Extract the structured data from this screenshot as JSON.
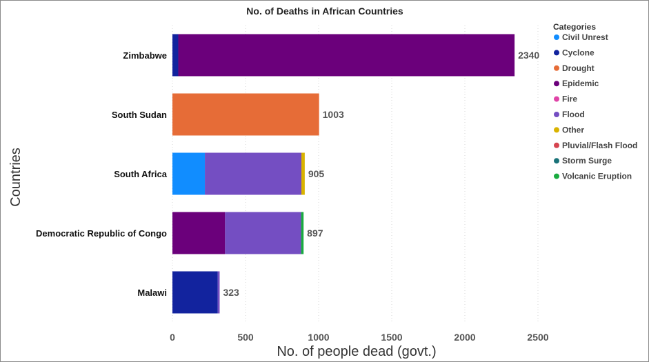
{
  "chart_data": {
    "type": "bar",
    "orientation": "horizontal",
    "stacked": true,
    "title": "No. of Deaths in African Countries",
    "xlabel": "No. of people dead (govt.)",
    "ylabel": "Countries",
    "xlim": [
      0,
      2600
    ],
    "xticks": [
      0,
      500,
      1000,
      1500,
      2000,
      2500
    ],
    "grid": "vertical-dotted",
    "legend_position": "right",
    "legend_title": "Categories",
    "categories": [
      "Zimbabwe",
      "South Sudan",
      "South Africa",
      "Democratic Republic of Congo",
      "Malawi"
    ],
    "totals": [
      2340,
      1003,
      905,
      897,
      323
    ],
    "series": [
      {
        "name": "Civil Unrest",
        "color": "#118DFF",
        "values": [
          0,
          0,
          222,
          0,
          0
        ]
      },
      {
        "name": "Cyclone",
        "color": "#12239E",
        "values": [
          40,
          0,
          0,
          0,
          310
        ]
      },
      {
        "name": "Drought",
        "color": "#E66C37",
        "values": [
          0,
          1003,
          0,
          0,
          0
        ]
      },
      {
        "name": "Epidemic",
        "color": "#6B007B",
        "values": [
          2300,
          0,
          0,
          360,
          0
        ]
      },
      {
        "name": "Fire",
        "color": "#E044A7",
        "values": [
          0,
          0,
          0,
          0,
          0
        ]
      },
      {
        "name": "Flood",
        "color": "#744EC2",
        "values": [
          0,
          0,
          660,
          520,
          13
        ]
      },
      {
        "name": "Other",
        "color": "#D9B300",
        "values": [
          0,
          0,
          23,
          0,
          0
        ]
      },
      {
        "name": "Pluvial/Flash Flood",
        "color": "#D64550",
        "values": [
          0,
          0,
          0,
          0,
          0
        ]
      },
      {
        "name": "Storm Surge",
        "color": "#197278",
        "values": [
          0,
          0,
          0,
          0,
          0
        ]
      },
      {
        "name": "Volcanic Eruption",
        "color": "#1AAB40",
        "values": [
          0,
          0,
          0,
          17,
          0
        ]
      }
    ]
  }
}
